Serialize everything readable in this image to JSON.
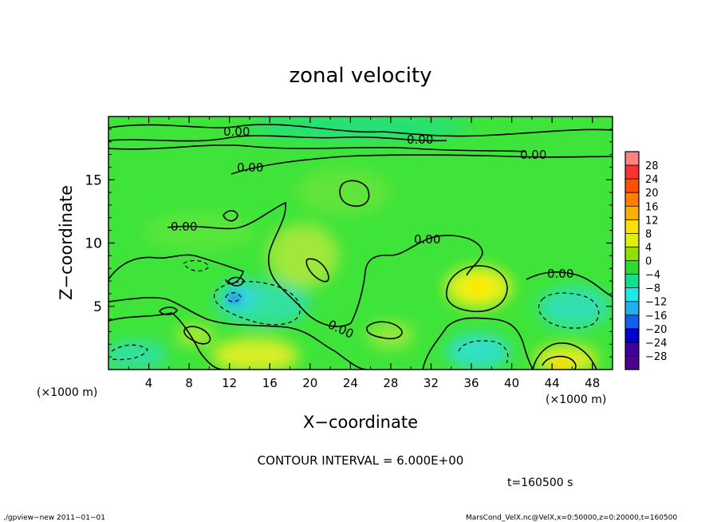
{
  "chart_data": {
    "type": "heatmap",
    "title": "zonal velocity",
    "xlabel": "X−coordinate",
    "ylabel": "Z−coordinate",
    "x_unit_left": "(×1000 m)",
    "x_unit_right": "(×1000 m)",
    "xlim": [
      0,
      50
    ],
    "ylim": [
      0,
      20
    ],
    "x_ticks": [
      4,
      8,
      12,
      16,
      20,
      24,
      28,
      32,
      36,
      40,
      44,
      48
    ],
    "y_ticks": [
      5,
      10,
      15
    ],
    "x_tick_labels": [
      "4",
      "8",
      "12",
      "16",
      "20",
      "24",
      "28",
      "32",
      "36",
      "40",
      "44",
      "48"
    ],
    "y_tick_labels": [
      "5",
      "10",
      "15"
    ],
    "contour_interval_text": "CONTOUR INTERVAL = 6.000E+00",
    "time_text": "t=160500 s",
    "contour_labels": [
      "0.00",
      "0.00",
      "0.00",
      "0.00",
      "0.00",
      "0.00",
      "0.00",
      "0.00"
    ],
    "colorbar": {
      "labels": [
        "28",
        "24",
        "20",
        "16",
        "12",
        "8",
        "4",
        "0",
        "−4",
        "−8",
        "−12",
        "−16",
        "−20",
        "−24",
        "−28"
      ],
      "levels": [
        28,
        24,
        20,
        16,
        12,
        8,
        4,
        0,
        -4,
        -8,
        -12,
        -16,
        -20,
        -24,
        -28
      ],
      "colors": [
        "#ff8080",
        "#ff3030",
        "#ff5000",
        "#ff8000",
        "#ffb000",
        "#ffe000",
        "#e0f000",
        "#90e000",
        "#2edc2e",
        "#10e090",
        "#20e8e8",
        "#20b0f0",
        "#1060f0",
        "#0000d0",
        "#4000a0",
        "#500090"
      ]
    }
  },
  "footer": {
    "left": "./gpview−new   2011−01−01",
    "right": "MarsCond_VelX.nc@VelX,x=0:50000,z=0:20000,t=160500"
  }
}
